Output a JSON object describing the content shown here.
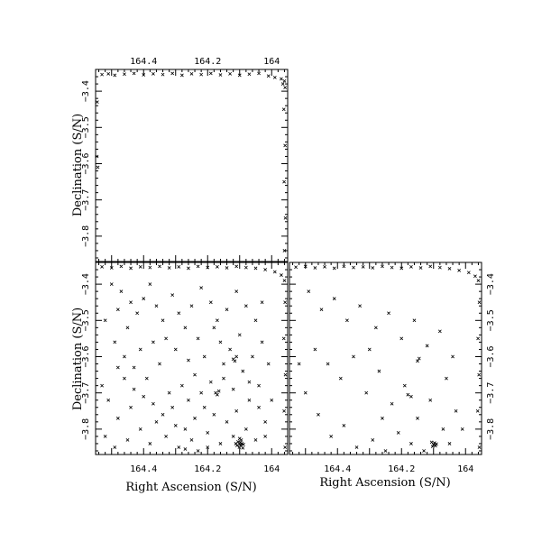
{
  "chart_data": [
    {
      "type": "scatter",
      "id": "top-left",
      "title": "",
      "xlabel": "",
      "ylabel": "Declination (S/N)",
      "xlim": [
        164.55,
        163.95
      ],
      "ylim": [
        -3.87,
        -3.34
      ],
      "x_tick_labels": [
        "164.4",
        "164.2",
        "164"
      ],
      "x_ticks": [
        164.4,
        164.2,
        164.0
      ],
      "x_tick_labels_position": "top",
      "y_tick_labels": [
        "−3.4",
        "−3.5",
        "−3.6",
        "−3.7",
        "−3.8"
      ],
      "y_ticks": [
        -3.4,
        -3.5,
        -3.6,
        -3.7,
        -3.8
      ],
      "y_tick_labels_position": "left",
      "grid": false,
      "marker": "x",
      "points": [
        [
          164.53,
          -3.354
        ],
        [
          164.51,
          -3.352
        ],
        [
          164.49,
          -3.356
        ],
        [
          164.46,
          -3.353
        ],
        [
          164.43,
          -3.351
        ],
        [
          164.4,
          -3.355
        ],
        [
          164.37,
          -3.352
        ],
        [
          164.34,
          -3.354
        ],
        [
          164.31,
          -3.351
        ],
        [
          164.28,
          -3.356
        ],
        [
          164.25,
          -3.352
        ],
        [
          164.22,
          -3.354
        ],
        [
          164.19,
          -3.351
        ],
        [
          164.16,
          -3.355
        ],
        [
          164.13,
          -3.352
        ],
        [
          164.1,
          -3.356
        ],
        [
          164.07,
          -3.353
        ],
        [
          164.04,
          -3.351
        ],
        [
          164.01,
          -3.358
        ],
        [
          163.99,
          -3.362
        ],
        [
          163.97,
          -3.366
        ],
        [
          163.96,
          -3.372
        ],
        [
          163.965,
          -3.38
        ],
        [
          163.958,
          -3.39
        ],
        [
          163.962,
          -3.45
        ],
        [
          163.958,
          -3.55
        ],
        [
          163.961,
          -3.65
        ],
        [
          163.957,
          -3.75
        ],
        [
          163.96,
          -3.84
        ],
        [
          164.545,
          -3.43
        ],
        [
          164.546,
          -3.58
        ],
        [
          164.543,
          -3.61
        ]
      ]
    },
    {
      "type": "scatter",
      "id": "bottom-left",
      "title": "",
      "xlabel": "Right Ascension (S/N)",
      "ylabel": "Declination (S/N)",
      "xlim": [
        164.55,
        163.95
      ],
      "ylim": [
        -3.87,
        -3.34
      ],
      "x_tick_labels": [
        "164.4",
        "164.2",
        "164"
      ],
      "x_ticks": [
        164.4,
        164.2,
        164.0
      ],
      "x_tick_labels_position": "bottom",
      "y_tick_labels": [
        "−3.4",
        "−3.5",
        "−3.6",
        "−3.7",
        "−3.8"
      ],
      "y_ticks": [
        -3.4,
        -3.5,
        -3.6,
        -3.7,
        -3.8
      ],
      "y_tick_labels_position": "left",
      "grid": false,
      "marker": "x",
      "points": [
        [
          164.53,
          -3.352
        ],
        [
          164.5,
          -3.355
        ],
        [
          164.47,
          -3.351
        ],
        [
          164.44,
          -3.356
        ],
        [
          164.41,
          -3.352
        ],
        [
          164.38,
          -3.354
        ],
        [
          164.35,
          -3.351
        ],
        [
          164.32,
          -3.355
        ],
        [
          164.29,
          -3.352
        ],
        [
          164.26,
          -3.356
        ],
        [
          164.23,
          -3.351
        ],
        [
          164.2,
          -3.354
        ],
        [
          164.17,
          -3.352
        ],
        [
          164.14,
          -3.355
        ],
        [
          164.11,
          -3.351
        ],
        [
          164.08,
          -3.354
        ],
        [
          164.05,
          -3.356
        ],
        [
          164.02,
          -3.36
        ],
        [
          163.99,
          -3.366
        ],
        [
          163.97,
          -3.375
        ],
        [
          163.96,
          -3.39
        ],
        [
          163.958,
          -3.45
        ],
        [
          163.962,
          -3.55
        ],
        [
          163.957,
          -3.65
        ],
        [
          163.961,
          -3.75
        ],
        [
          163.958,
          -3.85
        ],
        [
          164.5,
          -3.4
        ],
        [
          164.47,
          -3.42
        ],
        [
          164.44,
          -3.45
        ],
        [
          164.42,
          -3.48
        ],
        [
          164.48,
          -3.47
        ],
        [
          164.45,
          -3.52
        ],
        [
          164.4,
          -3.44
        ],
        [
          164.38,
          -3.4
        ],
        [
          164.36,
          -3.46
        ],
        [
          164.34,
          -3.5
        ],
        [
          164.31,
          -3.43
        ],
        [
          164.29,
          -3.48
        ],
        [
          164.33,
          -3.55
        ],
        [
          164.37,
          -3.56
        ],
        [
          164.41,
          -3.58
        ],
        [
          164.46,
          -3.6
        ],
        [
          164.49,
          -3.56
        ],
        [
          164.52,
          -3.5
        ],
        [
          164.43,
          -3.63
        ],
        [
          164.39,
          -3.66
        ],
        [
          164.35,
          -3.62
        ],
        [
          164.3,
          -3.58
        ],
        [
          164.27,
          -3.52
        ],
        [
          164.25,
          -3.46
        ],
        [
          164.22,
          -3.41
        ],
        [
          164.19,
          -3.45
        ],
        [
          164.17,
          -3.5
        ],
        [
          164.14,
          -3.47
        ],
        [
          164.11,
          -3.42
        ],
        [
          164.08,
          -3.46
        ],
        [
          164.05,
          -3.5
        ],
        [
          164.03,
          -3.45
        ],
        [
          164.1,
          -3.54
        ],
        [
          164.13,
          -3.58
        ],
        [
          164.16,
          -3.56
        ],
        [
          164.21,
          -3.6
        ],
        [
          164.24,
          -3.65
        ],
        [
          164.28,
          -3.68
        ],
        [
          164.32,
          -3.7
        ],
        [
          164.26,
          -3.72
        ],
        [
          164.22,
          -3.7
        ],
        [
          164.19,
          -3.67
        ],
        [
          164.15,
          -3.66
        ],
        [
          164.12,
          -3.69
        ],
        [
          164.09,
          -3.64
        ],
        [
          164.06,
          -3.6
        ],
        [
          164.03,
          -3.56
        ],
        [
          164.01,
          -3.62
        ],
        [
          164.04,
          -3.68
        ],
        [
          164.07,
          -3.72
        ],
        [
          164.11,
          -3.75
        ],
        [
          164.14,
          -3.78
        ],
        [
          164.18,
          -3.76
        ],
        [
          164.21,
          -3.74
        ],
        [
          164.24,
          -3.77
        ],
        [
          164.27,
          -3.8
        ],
        [
          164.3,
          -3.79
        ],
        [
          164.34,
          -3.76
        ],
        [
          164.37,
          -3.73
        ],
        [
          164.4,
          -3.71
        ],
        [
          164.44,
          -3.74
        ],
        [
          164.48,
          -3.77
        ],
        [
          164.51,
          -3.72
        ],
        [
          164.53,
          -3.68
        ],
        [
          164.52,
          -3.82
        ],
        [
          164.49,
          -3.85
        ],
        [
          164.45,
          -3.83
        ],
        [
          164.41,
          -3.8
        ],
        [
          164.38,
          -3.84
        ],
        [
          164.33,
          -3.82
        ],
        [
          164.29,
          -3.85
        ],
        [
          164.25,
          -3.83
        ],
        [
          164.2,
          -3.81
        ],
        [
          164.16,
          -3.84
        ],
        [
          164.12,
          -3.82
        ],
        [
          164.08,
          -3.8
        ],
        [
          164.05,
          -3.83
        ],
        [
          164.02,
          -3.78
        ],
        [
          164.0,
          -3.72
        ],
        [
          164.1,
          -3.843
        ],
        [
          164.098,
          -3.837
        ],
        [
          164.096,
          -3.846
        ],
        [
          164.093,
          -3.84
        ],
        [
          164.101,
          -3.85
        ],
        [
          164.105,
          -3.835
        ],
        [
          164.09,
          -3.852
        ],
        [
          164.108,
          -3.845
        ],
        [
          164.095,
          -3.83
        ],
        [
          164.088,
          -3.842
        ],
        [
          164.112,
          -3.84
        ],
        [
          164.1,
          -3.826
        ],
        [
          164.175,
          -3.7
        ],
        [
          164.17,
          -3.705
        ],
        [
          164.165,
          -3.695
        ],
        [
          164.12,
          -3.607
        ],
        [
          164.115,
          -3.612
        ],
        [
          164.11,
          -3.6
        ],
        [
          164.2,
          -3.85
        ],
        [
          164.23,
          -3.86
        ],
        [
          164.27,
          -3.855
        ],
        [
          164.48,
          -3.63
        ],
        [
          164.46,
          -3.66
        ],
        [
          164.43,
          -3.69
        ],
        [
          164.36,
          -3.78
        ],
        [
          164.31,
          -3.74
        ],
        [
          164.26,
          -3.61
        ],
        [
          164.23,
          -3.55
        ],
        [
          164.18,
          -3.52
        ],
        [
          164.15,
          -3.62
        ],
        [
          164.07,
          -3.67
        ],
        [
          164.04,
          -3.74
        ],
        [
          164.02,
          -3.82
        ]
      ]
    },
    {
      "type": "scatter",
      "id": "bottom-right",
      "title": "",
      "xlabel": "Right Ascension (S/N)",
      "ylabel": "",
      "xlim": [
        164.55,
        163.95
      ],
      "ylim": [
        -3.87,
        -3.34
      ],
      "x_tick_labels": [
        "164.4",
        "164.2",
        "164"
      ],
      "x_ticks": [
        164.4,
        164.2,
        164.0
      ],
      "x_tick_labels_position": "bottom",
      "y_tick_labels": [
        "−3.4",
        "−3.5",
        "−3.6",
        "−3.7",
        "−3.8"
      ],
      "y_ticks": [
        -3.4,
        -3.5,
        -3.6,
        -3.7,
        -3.8
      ],
      "y_tick_labels_position": "right",
      "grid": false,
      "marker": "x",
      "points": [
        [
          164.53,
          -3.353
        ],
        [
          164.5,
          -3.351
        ],
        [
          164.47,
          -3.355
        ],
        [
          164.44,
          -3.352
        ],
        [
          164.41,
          -3.356
        ],
        [
          164.38,
          -3.351
        ],
        [
          164.35,
          -3.354
        ],
        [
          164.32,
          -3.352
        ],
        [
          164.29,
          -3.355
        ],
        [
          164.26,
          -3.351
        ],
        [
          164.23,
          -3.354
        ],
        [
          164.2,
          -3.356
        ],
        [
          164.17,
          -3.352
        ],
        [
          164.14,
          -3.355
        ],
        [
          164.11,
          -3.351
        ],
        [
          164.08,
          -3.354
        ],
        [
          164.05,
          -3.357
        ],
        [
          164.02,
          -3.362
        ],
        [
          163.99,
          -3.368
        ],
        [
          163.97,
          -3.378
        ],
        [
          163.96,
          -3.39
        ],
        [
          163.957,
          -3.45
        ],
        [
          163.961,
          -3.55
        ],
        [
          163.958,
          -3.65
        ],
        [
          163.962,
          -3.75
        ],
        [
          163.957,
          -3.85
        ],
        [
          164.49,
          -3.42
        ],
        [
          164.45,
          -3.47
        ],
        [
          164.41,
          -3.44
        ],
        [
          164.37,
          -3.5
        ],
        [
          164.33,
          -3.46
        ],
        [
          164.28,
          -3.52
        ],
        [
          164.24,
          -3.48
        ],
        [
          164.2,
          -3.55
        ],
        [
          164.16,
          -3.5
        ],
        [
          164.12,
          -3.57
        ],
        [
          164.08,
          -3.53
        ],
        [
          164.04,
          -3.6
        ],
        [
          164.47,
          -3.58
        ],
        [
          164.43,
          -3.62
        ],
        [
          164.39,
          -3.66
        ],
        [
          164.35,
          -3.6
        ],
        [
          164.31,
          -3.7
        ],
        [
          164.27,
          -3.64
        ],
        [
          164.23,
          -3.73
        ],
        [
          164.19,
          -3.68
        ],
        [
          164.15,
          -3.77
        ],
        [
          164.11,
          -3.72
        ],
        [
          164.07,
          -3.8
        ],
        [
          164.03,
          -3.75
        ],
        [
          164.5,
          -3.7
        ],
        [
          164.46,
          -3.76
        ],
        [
          164.42,
          -3.82
        ],
        [
          164.38,
          -3.79
        ],
        [
          164.34,
          -3.85
        ],
        [
          164.29,
          -3.83
        ],
        [
          164.25,
          -3.86
        ],
        [
          164.21,
          -3.81
        ],
        [
          164.17,
          -3.84
        ],
        [
          164.13,
          -3.86
        ],
        [
          164.05,
          -3.84
        ],
        [
          164.01,
          -3.8
        ],
        [
          164.1,
          -3.843
        ],
        [
          164.097,
          -3.838
        ],
        [
          164.094,
          -3.846
        ],
        [
          164.103,
          -3.848
        ],
        [
          164.106,
          -3.836
        ],
        [
          164.091,
          -3.841
        ],
        [
          164.18,
          -3.705
        ],
        [
          164.17,
          -3.71
        ],
        [
          164.15,
          -3.612
        ],
        [
          164.145,
          -3.605
        ],
        [
          164.52,
          -3.62
        ],
        [
          164.3,
          -3.58
        ],
        [
          164.26,
          -3.77
        ],
        [
          164.06,
          -3.66
        ]
      ]
    }
  ]
}
